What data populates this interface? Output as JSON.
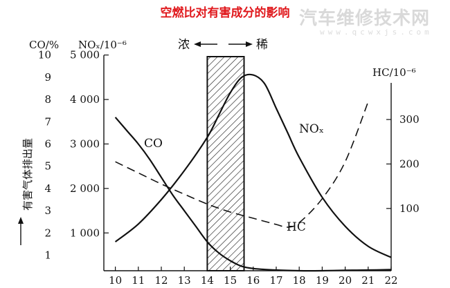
{
  "title": "空燃比对有害成分的影响",
  "watermark": {
    "text": "汽车维修技术网",
    "url": "www.qcwxjs.com"
  },
  "chart_data": {
    "type": "line",
    "x_ticks": [
      10,
      11,
      12,
      13,
      14,
      15,
      16,
      17,
      18,
      19,
      20,
      21,
      22
    ],
    "xlim": [
      9.5,
      22
    ],
    "axes": {
      "co": {
        "label": "CO/%",
        "range": [
          0.3,
          10.3
        ],
        "ticks": [
          1,
          2,
          3,
          4,
          5,
          6,
          7,
          8,
          9,
          10
        ]
      },
      "nox": {
        "label": "NOₓ/10⁻⁶",
        "range": [
          150,
          5150
        ],
        "ticks": [
          1000,
          2000,
          3000,
          4000,
          5000
        ],
        "tick_labels": [
          "1 000",
          "2 000",
          "3 000",
          "4 000",
          "5 000"
        ]
      },
      "hc": {
        "label": "HC/10⁻⁶",
        "range": [
          -40,
          460
        ],
        "ticks": [
          100,
          200,
          300
        ]
      }
    },
    "left_axis_caption": "有害气体排出量",
    "rich_lean": {
      "rich": "浓",
      "lean": "稀"
    },
    "band": {
      "from": 14.0,
      "to": 15.6
    },
    "series": [
      {
        "name": "CO",
        "axis": "co",
        "style": "solid",
        "x": [
          10,
          10.5,
          11,
          11.5,
          12,
          12.5,
          13,
          13.5,
          14,
          14.5,
          15,
          15.5,
          16,
          17,
          18,
          19,
          20,
          21,
          22
        ],
        "y": [
          7.2,
          6.6,
          6.0,
          5.3,
          4.5,
          3.7,
          3.0,
          2.3,
          1.6,
          1.1,
          0.75,
          0.5,
          0.4,
          0.33,
          0.3,
          0.3,
          0.32,
          0.33,
          0.35
        ]
      },
      {
        "name": "NOₓ",
        "axis": "nox",
        "style": "solid",
        "x": [
          10,
          11,
          12,
          13,
          14,
          14.5,
          15,
          15.5,
          16,
          16.5,
          17,
          17.5,
          18,
          19,
          20,
          21,
          22
        ],
        "y": [
          800,
          1200,
          1750,
          2400,
          3150,
          3650,
          4150,
          4500,
          4550,
          4350,
          3800,
          3250,
          2700,
          1800,
          1150,
          700,
          450
        ]
      },
      {
        "name": "HC",
        "axis": "hc",
        "style": "dashed",
        "x": [
          10,
          11,
          12,
          13,
          14,
          15,
          16,
          17,
          17.5,
          18,
          19,
          20,
          21
        ],
        "y": [
          205,
          180,
          155,
          132,
          110,
          92,
          78,
          64,
          58,
          68,
          122,
          205,
          340
        ]
      }
    ],
    "curve_labels": {
      "CO": "CO",
      "NOx": "NOₓ",
      "HC": "HC"
    }
  }
}
